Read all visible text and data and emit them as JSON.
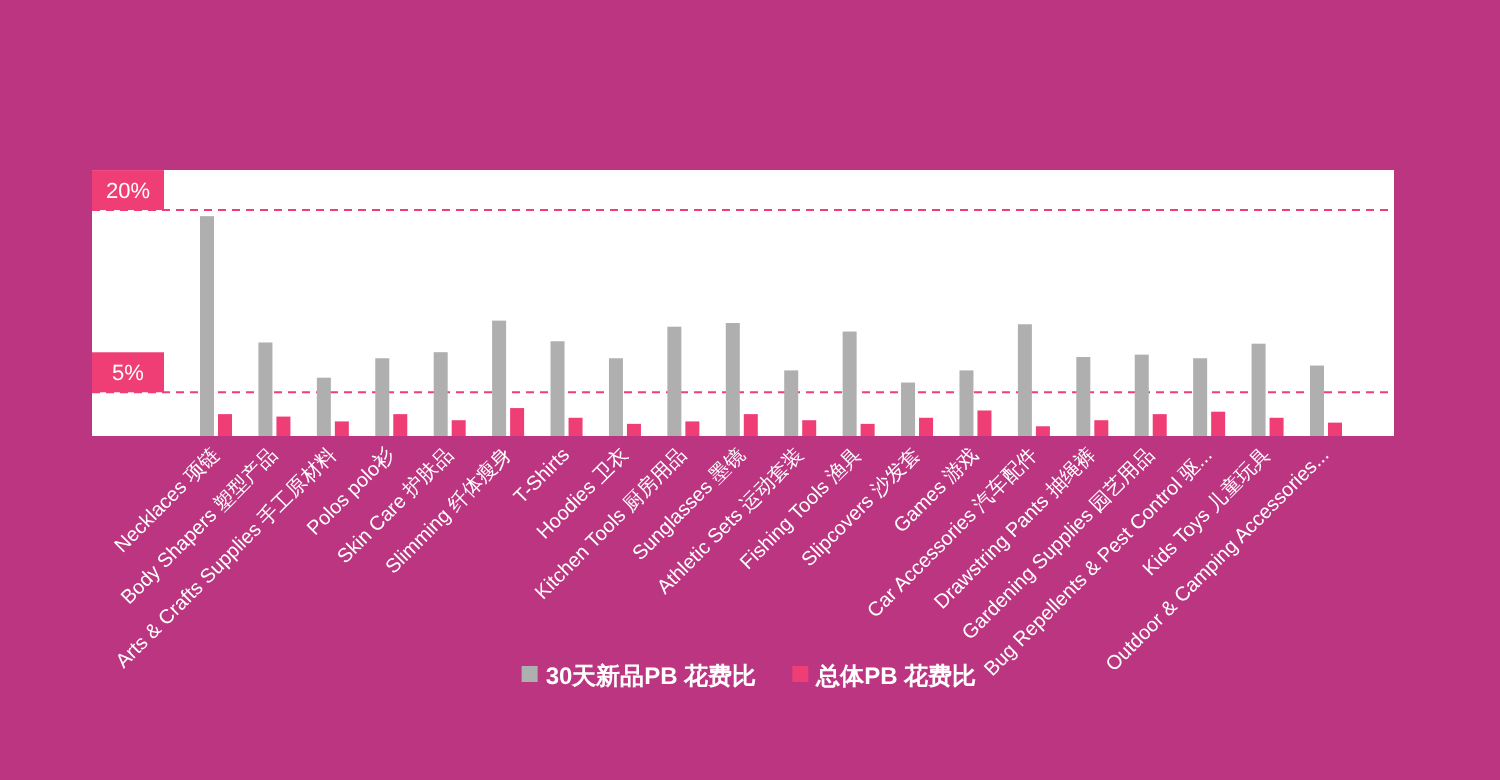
{
  "chart_data": {
    "type": "bar",
    "categories": [
      "Necklaces 项链",
      "Body Shapers 塑型产品",
      "Arts & Crafts Supplies 手工原材料",
      "Polos polo衫",
      "Skin Care 护肤品",
      "Slimming 纤体瘦身",
      "T-Shirts",
      "Hoodies 卫衣",
      "Kitchen Tools 厨房用品",
      "Sunglasses 墨镜",
      "Athletic Sets 运动套装",
      "Fishing Tools 渔具",
      "Slipcovers 沙发套",
      "Games 游戏",
      "Car Accessories 汽车配件",
      "Drawstring Pants 抽绳裤",
      "Gardening Supplies 园艺用品",
      "Bug Repellents & Pest Control 驱...",
      "Kids Toys 儿童玩具",
      "Outdoor & Camping Accessories..."
    ],
    "series": [
      {
        "name": "30天新品PB 花费比",
        "color": "#afafaf",
        "values": [
          19.5,
          9.1,
          6.2,
          7.8,
          8.3,
          10.9,
          9.2,
          7.8,
          10.4,
          10.7,
          6.8,
          10.0,
          5.8,
          6.8,
          10.6,
          7.9,
          8.1,
          7.8,
          9.0,
          7.2
        ]
      },
      {
        "name": "总体PB 花费比",
        "color": "#ef3e76",
        "values": [
          3.2,
          3.0,
          2.6,
          3.2,
          2.7,
          3.7,
          2.9,
          2.4,
          2.6,
          3.2,
          2.7,
          2.4,
          2.9,
          3.5,
          2.2,
          2.7,
          3.2,
          3.4,
          2.9,
          2.5
        ]
      }
    ],
    "ylim": [
      1.4,
      23.3
    ],
    "ref_lines": [
      {
        "axis": "y",
        "value": 20,
        "label": "20%",
        "color": "#ef3e76",
        "line_style": "dashed"
      },
      {
        "axis": "y",
        "value": 5,
        "label": "5%",
        "color": "#ef3e76",
        "line_style": "dashed"
      }
    ],
    "legend": "bottom"
  }
}
